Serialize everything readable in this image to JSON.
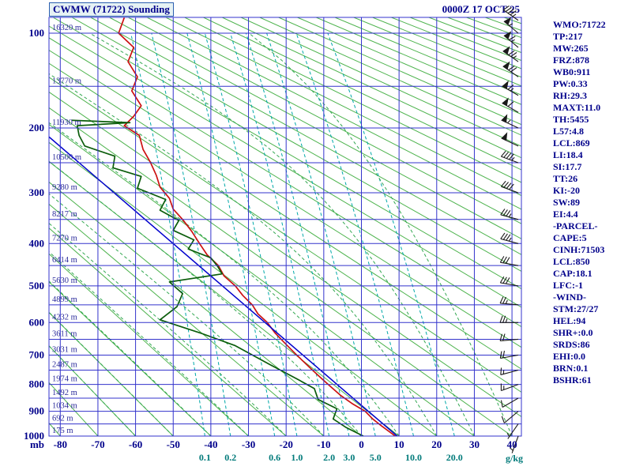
{
  "header": {
    "title": "CWMW (71722) Sounding",
    "datetime": "0000Z 17 OCT 25"
  },
  "colors": {
    "background": "#ffffff",
    "grid": "#3333cc",
    "dry_adiabat": "#4db34d",
    "moist_adiabat": "#33a852",
    "mixing_ratio": "#00a8a8",
    "axis_text": "#00008b",
    "mixing_text": "#007a7a",
    "wind_barb": "#1a1a1a"
  },
  "chart_data": {
    "type": "line",
    "title": "CWMW (71722) Sounding",
    "valid": "0000Z 17 OCT 25",
    "pressure_axis": {
      "unit": "mb",
      "labels": [
        100,
        200,
        300,
        400,
        500,
        600,
        700,
        800,
        900,
        1000
      ],
      "line_step_mb": 50,
      "range": [
        100,
        1000
      ]
    },
    "temp_axis": {
      "ticks": [
        -80,
        -70,
        -60,
        -50,
        -40,
        -30,
        -20,
        -10,
        0,
        10,
        20,
        30,
        40
      ],
      "edge_range": [
        -83,
        42.5
      ]
    },
    "height_labels": {
      "pressures_mb": [
        100,
        150,
        200,
        250,
        300,
        350,
        400,
        450,
        500,
        550,
        600,
        650,
        700,
        750,
        800,
        850,
        900,
        950,
        1000
      ],
      "labels": [
        "16320 m",
        "13770 m",
        "11930 m",
        "10500 m",
        "9280 m",
        "8217 m",
        "7270 m",
        "6414 m",
        "5630 m",
        "4899 m",
        "4232 m",
        "3611 m",
        "3031 m",
        "2487 m",
        "1974 m",
        "1492 m",
        "1034 m",
        "692 m",
        "175 m"
      ]
    },
    "mixing_ratio": {
      "values_gkg": [
        0.1,
        0.2,
        0.6,
        1.0,
        2.0,
        3.0,
        5.0,
        10.0,
        20.0
      ],
      "unit": "g/kg"
    },
    "dry_adiabats_c": {
      "min": -80,
      "max": 360,
      "step": 10
    },
    "moist_adiabats_c": {
      "min": -60,
      "max": 40,
      "step": 10
    },
    "series": [
      {
        "name": "temperature",
        "color": "#cc1111",
        "width": 1.7,
        "points": [
          [
            88,
            -63
          ],
          [
            100,
            -64.5
          ],
          [
            112,
            -60.5
          ],
          [
            125,
            -62
          ],
          [
            140,
            -59.5
          ],
          [
            155,
            -61
          ],
          [
            172,
            -58.5
          ],
          [
            185,
            -60.5
          ],
          [
            197,
            -63
          ],
          [
            210,
            -59
          ],
          [
            230,
            -58
          ],
          [
            250,
            -56
          ],
          [
            270,
            -54.5
          ],
          [
            290,
            -53.5
          ],
          [
            310,
            -51
          ],
          [
            330,
            -50
          ],
          [
            350,
            -47.5
          ],
          [
            375,
            -45
          ],
          [
            400,
            -43
          ],
          [
            425,
            -41
          ],
          [
            450,
            -38
          ],
          [
            475,
            -36.5
          ],
          [
            500,
            -33.5
          ],
          [
            525,
            -31.5
          ],
          [
            550,
            -29
          ],
          [
            575,
            -27.5
          ],
          [
            600,
            -25
          ],
          [
            630,
            -23
          ],
          [
            660,
            -20.5
          ],
          [
            690,
            -18
          ],
          [
            720,
            -15.5
          ],
          [
            750,
            -13
          ],
          [
            780,
            -10.5
          ],
          [
            810,
            -8
          ],
          [
            840,
            -5.5
          ],
          [
            870,
            -2.5
          ],
          [
            900,
            1
          ],
          [
            930,
            3
          ],
          [
            960,
            5.5
          ],
          [
            1000,
            9
          ]
        ]
      },
      {
        "name": "dewpoint",
        "color": "#0b5d0b",
        "width": 1.7,
        "points": [
          [
            190,
            -77
          ],
          [
            193,
            -61.5
          ],
          [
            197,
            -75.5
          ],
          [
            210,
            -75
          ],
          [
            225,
            -73.5
          ],
          [
            240,
            -65.5
          ],
          [
            258,
            -66
          ],
          [
            272,
            -58.5
          ],
          [
            292,
            -59.5
          ],
          [
            312,
            -52
          ],
          [
            332,
            -53.5
          ],
          [
            352,
            -48.5
          ],
          [
            372,
            -50
          ],
          [
            392,
            -44.5
          ],
          [
            412,
            -46
          ],
          [
            432,
            -40
          ],
          [
            452,
            -38.2
          ],
          [
            470,
            -37
          ],
          [
            490,
            -51
          ],
          [
            520,
            -47.5
          ],
          [
            555,
            -49
          ],
          [
            592,
            -53.5
          ],
          [
            630,
            -43
          ],
          [
            670,
            -33.5
          ],
          [
            730,
            -24.5
          ],
          [
            785,
            -16.5
          ],
          [
            815,
            -12.5
          ],
          [
            855,
            -11.5
          ],
          [
            890,
            -6.5
          ],
          [
            930,
            -7.5
          ],
          [
            965,
            -4
          ],
          [
            1000,
            0.5
          ]
        ]
      },
      {
        "name": "parcel",
        "color": "#0000cc",
        "width": 1.5,
        "points": [
          [
            1000,
            9.5
          ],
          [
            212,
            -83
          ]
        ]
      }
    ],
    "winds": [
      {
        "p": 90,
        "dir": 305,
        "spd": 45
      },
      {
        "p": 100,
        "dir": 310,
        "spd": 55
      },
      {
        "p": 112,
        "dir": 310,
        "spd": 65
      },
      {
        "p": 125,
        "dir": 305,
        "spd": 75
      },
      {
        "p": 140,
        "dir": 305,
        "spd": 70
      },
      {
        "p": 160,
        "dir": 300,
        "spd": 65
      },
      {
        "p": 180,
        "dir": 300,
        "spd": 60
      },
      {
        "p": 200,
        "dir": 295,
        "spd": 55
      },
      {
        "p": 225,
        "dir": 295,
        "spd": 50
      },
      {
        "p": 250,
        "dir": 290,
        "spd": 45
      },
      {
        "p": 300,
        "dir": 290,
        "spd": 40
      },
      {
        "p": 350,
        "dir": 285,
        "spd": 35
      },
      {
        "p": 400,
        "dir": 285,
        "spd": 35
      },
      {
        "p": 450,
        "dir": 280,
        "spd": 30
      },
      {
        "p": 500,
        "dir": 280,
        "spd": 30
      },
      {
        "p": 550,
        "dir": 275,
        "spd": 25
      },
      {
        "p": 600,
        "dir": 270,
        "spd": 25
      },
      {
        "p": 650,
        "dir": 265,
        "spd": 20
      },
      {
        "p": 700,
        "dir": 260,
        "spd": 20
      },
      {
        "p": 750,
        "dir": 255,
        "spd": 15
      },
      {
        "p": 800,
        "dir": 250,
        "spd": 15
      },
      {
        "p": 850,
        "dir": 240,
        "spd": 10
      },
      {
        "p": 900,
        "dir": 230,
        "spd": 10
      },
      {
        "p": 950,
        "dir": 215,
        "spd": 5
      },
      {
        "p": 1000,
        "dir": 200,
        "spd": 5
      }
    ]
  },
  "indices": [
    "WMO:71722",
    "TP:217",
    "MW:265",
    "FRZ:878",
    "WB0:911",
    "PW:0.33",
    "RH:29.3",
    "MAXT:11.0",
    "TH:5455",
    "L57:4.8",
    "LCL:869",
    "LI:18.4",
    "SI:17.7",
    "TT:26",
    "KI:-20",
    "SW:89",
    "EI:4.4",
    "-PARCEL-",
    "CAPE:5",
    "CINH:71503",
    "LCL:850",
    "CAP:18.1",
    "LFC:-1",
    "-WIND-",
    "STM:27/27",
    "HEL:94",
    "SHR+:0.0",
    "SRDS:86",
    "EHI:0.0",
    "BRN:0.1",
    "BSHR:61"
  ]
}
